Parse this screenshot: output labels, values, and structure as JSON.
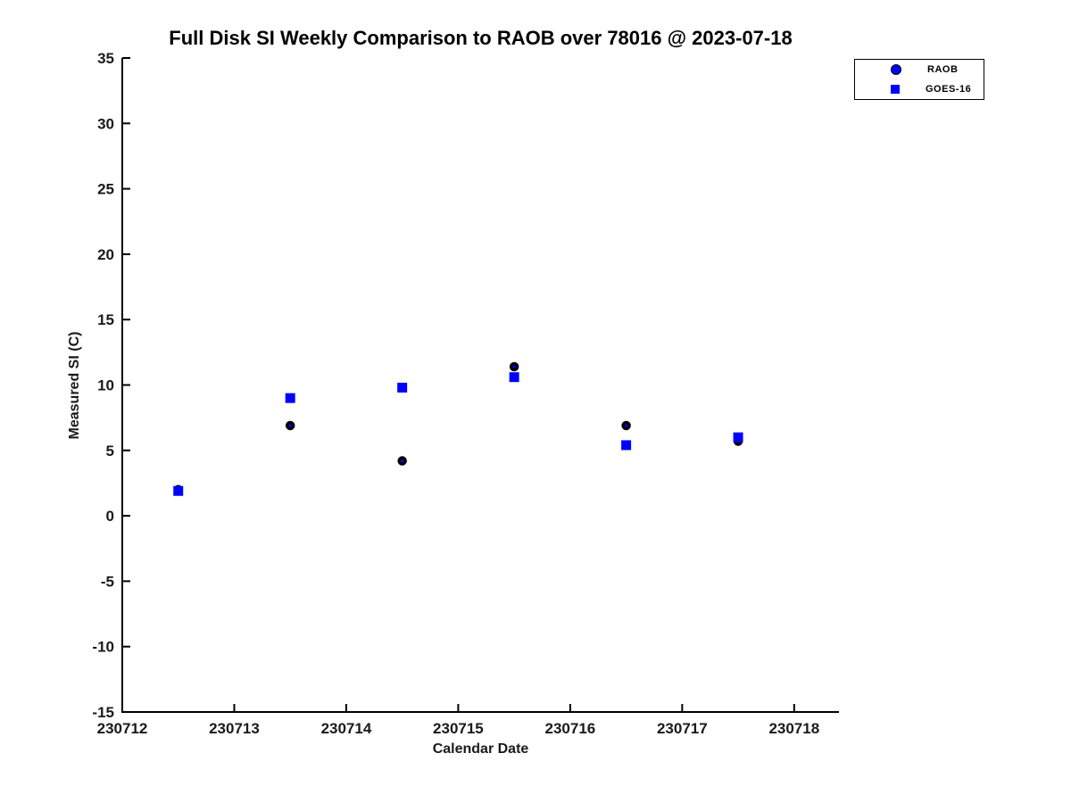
{
  "figure": {
    "background": "#ffffff",
    "text_color": "#000000"
  },
  "chart_data": {
    "type": "scatter",
    "title": "Full Disk SI Weekly Comparison to RAOB over 78016 @ 2023-07-18",
    "xlabel": "Calendar Date",
    "ylabel": "Measured SI (C)",
    "xlim": [
      230712,
      230718.4
    ],
    "ylim": [
      -15,
      35
    ],
    "x_ticks": [
      230712,
      230713,
      230714,
      230715,
      230716,
      230717,
      230718
    ],
    "y_ticks": [
      35,
      30,
      25,
      20,
      15,
      10,
      5,
      0,
      -5,
      -10,
      -15
    ],
    "grid": false,
    "legend_position": "top-right",
    "x": [
      230712.5,
      230713.5,
      230714.5,
      230715.5,
      230716.5,
      230717.5
    ],
    "series": [
      {
        "name": "RAOB",
        "marker": "circle",
        "face_color": "#0000ff",
        "edge_color": "#000000",
        "legend_color": "#0000ff",
        "values": [
          2.0,
          6.9,
          4.2,
          11.4,
          6.9,
          5.7
        ]
      },
      {
        "name": "GOES-16",
        "marker": "square",
        "face_color": "#0000ff",
        "edge_color": "#0000ff",
        "legend_color": "#0000ff",
        "values": [
          1.9,
          9.0,
          9.8,
          10.6,
          5.4,
          6.0
        ]
      }
    ]
  }
}
